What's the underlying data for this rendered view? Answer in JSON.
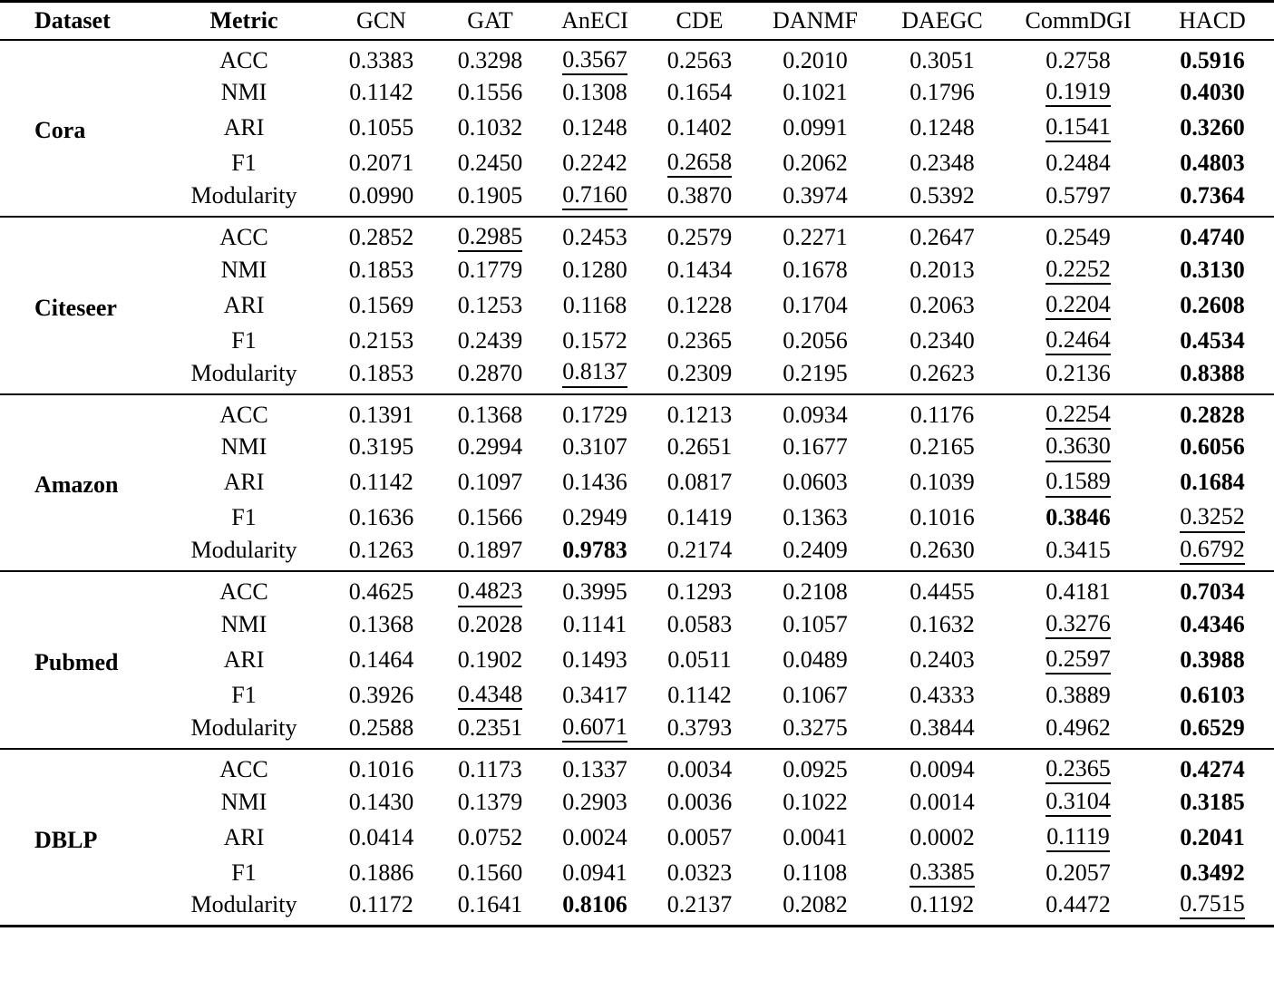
{
  "colors": {
    "text": "#000000",
    "background": "#ffffff",
    "rule": "#000000"
  },
  "table": {
    "columns": [
      "Dataset",
      "Metric",
      "GCN",
      "GAT",
      "AnECI",
      "CDE",
      "DANMF",
      "DAEGC",
      "CommDGI",
      "HACD"
    ],
    "emphasis": {
      "bold": "best value in row",
      "underline": "second-best value in row"
    },
    "groups": [
      {
        "dataset": "Cora",
        "rows": [
          {
            "metric": "ACC",
            "values": [
              "0.3383",
              "0.3298",
              "0.3567",
              "0.2563",
              "0.2010",
              "0.3051",
              "0.2758",
              "0.5916"
            ],
            "best": "HACD",
            "second": "AnECI"
          },
          {
            "metric": "NMI",
            "values": [
              "0.1142",
              "0.1556",
              "0.1308",
              "0.1654",
              "0.1021",
              "0.1796",
              "0.1919",
              "0.4030"
            ],
            "best": "HACD",
            "second": "CommDGI"
          },
          {
            "metric": "ARI",
            "values": [
              "0.1055",
              "0.1032",
              "0.1248",
              "0.1402",
              "0.0991",
              "0.1248",
              "0.1541",
              "0.3260"
            ],
            "best": "HACD",
            "second": "CommDGI"
          },
          {
            "metric": "F1",
            "values": [
              "0.2071",
              "0.2450",
              "0.2242",
              "0.2658",
              "0.2062",
              "0.2348",
              "0.2484",
              "0.4803"
            ],
            "best": "HACD",
            "second": "CDE"
          },
          {
            "metric": "Modularity",
            "values": [
              "0.0990",
              "0.1905",
              "0.7160",
              "0.3870",
              "0.3974",
              "0.5392",
              "0.5797",
              "0.7364"
            ],
            "best": "HACD",
            "second": "AnECI"
          }
        ]
      },
      {
        "dataset": "Citeseer",
        "rows": [
          {
            "metric": "ACC",
            "values": [
              "0.2852",
              "0.2985",
              "0.2453",
              "0.2579",
              "0.2271",
              "0.2647",
              "0.2549",
              "0.4740"
            ],
            "best": "HACD",
            "second": "GAT"
          },
          {
            "metric": "NMI",
            "values": [
              "0.1853",
              "0.1779",
              "0.1280",
              "0.1434",
              "0.1678",
              "0.2013",
              "0.2252",
              "0.3130"
            ],
            "best": "HACD",
            "second": "CommDGI"
          },
          {
            "metric": "ARI",
            "values": [
              "0.1569",
              "0.1253",
              "0.1168",
              "0.1228",
              "0.1704",
              "0.2063",
              "0.2204",
              "0.2608"
            ],
            "best": "HACD",
            "second": "CommDGI"
          },
          {
            "metric": "F1",
            "values": [
              "0.2153",
              "0.2439",
              "0.1572",
              "0.2365",
              "0.2056",
              "0.2340",
              "0.2464",
              "0.4534"
            ],
            "best": "HACD",
            "second": "CommDGI"
          },
          {
            "metric": "Modularity",
            "values": [
              "0.1853",
              "0.2870",
              "0.8137",
              "0.2309",
              "0.2195",
              "0.2623",
              "0.2136",
              "0.8388"
            ],
            "best": "HACD",
            "second": "AnECI"
          }
        ]
      },
      {
        "dataset": "Amazon",
        "rows": [
          {
            "metric": "ACC",
            "values": [
              "0.1391",
              "0.1368",
              "0.1729",
              "0.1213",
              "0.0934",
              "0.1176",
              "0.2254",
              "0.2828"
            ],
            "best": "HACD",
            "second": "CommDGI"
          },
          {
            "metric": "NMI",
            "values": [
              "0.3195",
              "0.2994",
              "0.3107",
              "0.2651",
              "0.1677",
              "0.2165",
              "0.3630",
              "0.6056"
            ],
            "best": "HACD",
            "second": "CommDGI"
          },
          {
            "metric": "ARI",
            "values": [
              "0.1142",
              "0.1097",
              "0.1436",
              "0.0817",
              "0.0603",
              "0.1039",
              "0.1589",
              "0.1684"
            ],
            "best": "HACD",
            "second": "CommDGI"
          },
          {
            "metric": "F1",
            "values": [
              "0.1636",
              "0.1566",
              "0.2949",
              "0.1419",
              "0.1363",
              "0.1016",
              "0.3846",
              "0.3252"
            ],
            "best": "CommDGI",
            "second": "HACD"
          },
          {
            "metric": "Modularity",
            "values": [
              "0.1263",
              "0.1897",
              "0.9783",
              "0.2174",
              "0.2409",
              "0.2630",
              "0.3415",
              "0.6792"
            ],
            "best": "AnECI",
            "second": "HACD"
          }
        ]
      },
      {
        "dataset": "Pubmed",
        "rows": [
          {
            "metric": "ACC",
            "values": [
              "0.4625",
              "0.4823",
              "0.3995",
              "0.1293",
              "0.2108",
              "0.4455",
              "0.4181",
              "0.7034"
            ],
            "best": "HACD",
            "second": "GAT"
          },
          {
            "metric": "NMI",
            "values": [
              "0.1368",
              "0.2028",
              "0.1141",
              "0.0583",
              "0.1057",
              "0.1632",
              "0.3276",
              "0.4346"
            ],
            "best": "HACD",
            "second": "CommDGI"
          },
          {
            "metric": "ARI",
            "values": [
              "0.1464",
              "0.1902",
              "0.1493",
              "0.0511",
              "0.0489",
              "0.2403",
              "0.2597",
              "0.3988"
            ],
            "best": "HACD",
            "second": "CommDGI"
          },
          {
            "metric": "F1",
            "values": [
              "0.3926",
              "0.4348",
              "0.3417",
              "0.1142",
              "0.1067",
              "0.4333",
              "0.3889",
              "0.6103"
            ],
            "best": "HACD",
            "second": "GAT"
          },
          {
            "metric": "Modularity",
            "values": [
              "0.2588",
              "0.2351",
              "0.6071",
              "0.3793",
              "0.3275",
              "0.3844",
              "0.4962",
              "0.6529"
            ],
            "best": "HACD",
            "second": "AnECI"
          }
        ]
      },
      {
        "dataset": "DBLP",
        "rows": [
          {
            "metric": "ACC",
            "values": [
              "0.1016",
              "0.1173",
              "0.1337",
              "0.0034",
              "0.0925",
              "0.0094",
              "0.2365",
              "0.4274"
            ],
            "best": "HACD",
            "second": "CommDGI"
          },
          {
            "metric": "NMI",
            "values": [
              "0.1430",
              "0.1379",
              "0.2903",
              "0.0036",
              "0.1022",
              "0.0014",
              "0.3104",
              "0.3185"
            ],
            "best": "HACD",
            "second": "CommDGI"
          },
          {
            "metric": "ARI",
            "values": [
              "0.0414",
              "0.0752",
              "0.0024",
              "0.0057",
              "0.0041",
              "0.0002",
              "0.1119",
              "0.2041"
            ],
            "best": "HACD",
            "second": "CommDGI"
          },
          {
            "metric": "F1",
            "values": [
              "0.1886",
              "0.1560",
              "0.0941",
              "0.0323",
              "0.1108",
              "0.3385",
              "0.2057",
              "0.3492"
            ],
            "best": "HACD",
            "second": "DAEGC"
          },
          {
            "metric": "Modularity",
            "values": [
              "0.1172",
              "0.1641",
              "0.8106",
              "0.2137",
              "0.2082",
              "0.1192",
              "0.4472",
              "0.7515"
            ],
            "best": "AnECI",
            "second": "HACD"
          }
        ]
      }
    ]
  }
}
